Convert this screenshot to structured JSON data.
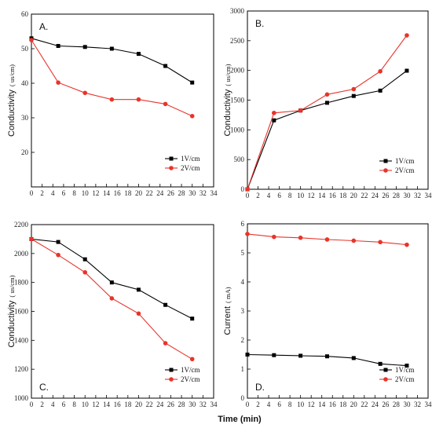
{
  "figure": {
    "shared_xlabel": "Time (min)"
  },
  "chart_data": [
    {
      "panel": "A.",
      "type": "line",
      "ylabel": "Conductivity",
      "yunit": "( us/cm)",
      "xlim": [
        0,
        34
      ],
      "ylim": [
        10,
        60
      ],
      "xticks": [
        0,
        2,
        4,
        6,
        8,
        10,
        12,
        14,
        16,
        18,
        20,
        22,
        24,
        26,
        28,
        30,
        32,
        34
      ],
      "yticks": [
        20,
        30,
        40,
        50,
        60
      ],
      "legend_position": "lower-right",
      "series": [
        {
          "name": "1V/cm",
          "color": "#000000",
          "marker": "square",
          "x": [
            0,
            5,
            10,
            15,
            20,
            25,
            30
          ],
          "y": [
            53,
            50.8,
            50.5,
            50,
            48.5,
            45,
            40.2
          ]
        },
        {
          "name": "2V/cm",
          "color": "#e8342b",
          "marker": "circle",
          "x": [
            0,
            5,
            10,
            15,
            20,
            25,
            30
          ],
          "y": [
            52.5,
            40.2,
            37.2,
            35.3,
            35.3,
            34,
            30.5
          ]
        }
      ]
    },
    {
      "panel": "B.",
      "type": "line",
      "ylabel": "Conductivity",
      "yunit": "( us/cm)",
      "xlim": [
        0,
        34
      ],
      "ylim": [
        0,
        3000
      ],
      "xticks": [
        0,
        2,
        4,
        6,
        8,
        10,
        12,
        14,
        16,
        18,
        20,
        22,
        24,
        26,
        28,
        30,
        32,
        34
      ],
      "yticks": [
        0,
        500,
        1000,
        1500,
        2000,
        2500,
        3000
      ],
      "legend_position": "lower-right",
      "series": [
        {
          "name": "1V/cm",
          "color": "#000000",
          "marker": "square",
          "x": [
            0,
            5,
            10,
            15,
            20,
            25,
            30
          ],
          "y": [
            0,
            1160,
            1325,
            1455,
            1570,
            1660,
            1995
          ]
        },
        {
          "name": "2V/cm",
          "color": "#e8342b",
          "marker": "circle",
          "x": [
            0,
            5,
            10,
            15,
            20,
            25,
            30
          ],
          "y": [
            0,
            1285,
            1325,
            1595,
            1685,
            1985,
            2590
          ]
        }
      ]
    },
    {
      "panel": "C.",
      "type": "line",
      "ylabel": "Conductivity",
      "yunit": "( us/cm)",
      "xlim": [
        0,
        34
      ],
      "ylim": [
        1000,
        2200
      ],
      "xticks": [
        0,
        2,
        4,
        6,
        8,
        10,
        12,
        14,
        16,
        18,
        20,
        22,
        24,
        26,
        28,
        30,
        32,
        34
      ],
      "yticks": [
        1000,
        1200,
        1400,
        1600,
        1800,
        2000,
        2200
      ],
      "legend_position": "lower-right",
      "series": [
        {
          "name": "1V/cm",
          "color": "#000000",
          "marker": "square",
          "x": [
            0,
            5,
            10,
            15,
            20,
            25,
            30
          ],
          "y": [
            2100,
            2080,
            1960,
            1800,
            1750,
            1645,
            1550
          ]
        },
        {
          "name": "2V/cm",
          "color": "#e8342b",
          "marker": "circle",
          "x": [
            0,
            5,
            10,
            15,
            20,
            25,
            30
          ],
          "y": [
            2100,
            1990,
            1870,
            1690,
            1585,
            1380,
            1270
          ]
        }
      ]
    },
    {
      "panel": "D.",
      "type": "line",
      "ylabel": "Current",
      "yunit": "( mA)",
      "xlim": [
        0,
        34
      ],
      "ylim": [
        0,
        6
      ],
      "xticks": [
        0,
        2,
        4,
        6,
        8,
        10,
        12,
        14,
        16,
        18,
        20,
        22,
        24,
        26,
        28,
        30,
        32,
        34
      ],
      "yticks": [
        0,
        1,
        2,
        3,
        4,
        5,
        6
      ],
      "legend_position": "lower-right",
      "series": [
        {
          "name": "1V/cm",
          "color": "#000000",
          "marker": "square",
          "x": [
            0,
            5,
            10,
            15,
            20,
            25,
            30
          ],
          "y": [
            1.5,
            1.48,
            1.46,
            1.44,
            1.38,
            1.18,
            1.12
          ]
        },
        {
          "name": "2V/cm",
          "color": "#e8342b",
          "marker": "circle",
          "x": [
            0,
            5,
            10,
            15,
            20,
            25,
            30
          ],
          "y": [
            5.65,
            5.55,
            5.52,
            5.46,
            5.42,
            5.37,
            5.28
          ]
        }
      ]
    }
  ]
}
